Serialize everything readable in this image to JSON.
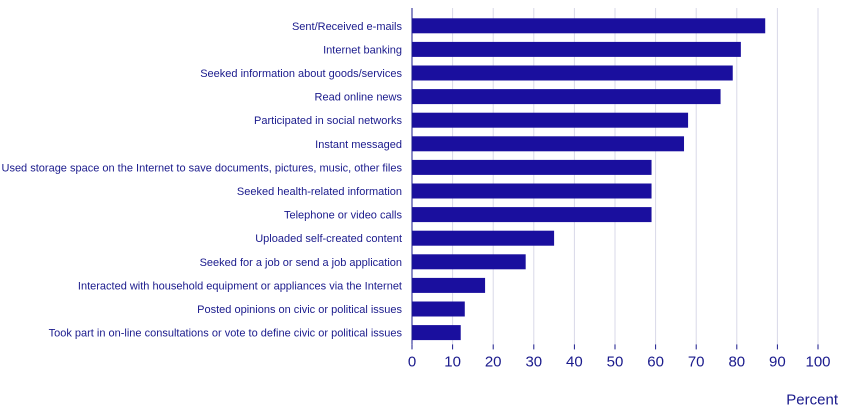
{
  "chart_data": {
    "type": "bar",
    "orientation": "horizontal",
    "categories": [
      "Sent/Received e-mails",
      "Internet banking",
      "Seeked information about goods/services",
      "Read online news",
      "Participated in social networks",
      "Instant messaged",
      "Used storage space on the Internet to save documents, pictures, music, other files",
      "Seeked health-related information",
      "Telephone or video calls",
      "Uploaded self-created content",
      "Seeked for a job or send a job application",
      "Interacted with household equipment or appliances via the Internet",
      "Posted opinions on civic or political issues",
      "Took part in on-line consultations or vote to define civic or political issues"
    ],
    "values": [
      87,
      81,
      79,
      76,
      68,
      67,
      59,
      59,
      59,
      35,
      28,
      18,
      13,
      12
    ],
    "xlabel": "Percent",
    "xlim": [
      0,
      100
    ],
    "xticks": [
      "0",
      "10",
      "20",
      "30",
      "40",
      "50",
      "60",
      "70",
      "80",
      "90",
      "100"
    ],
    "grid": true,
    "bar_color": "#1a0f9e",
    "text_color": "#1a1a8c"
  }
}
